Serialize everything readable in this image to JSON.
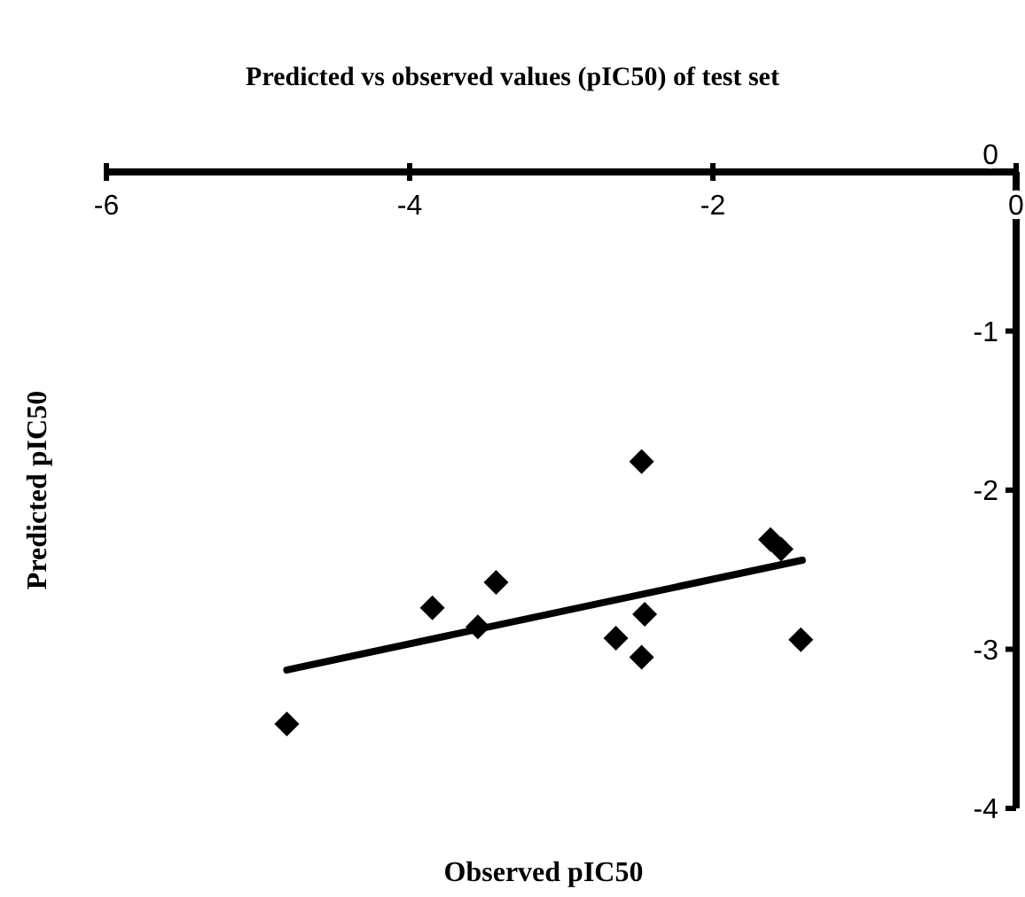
{
  "chart_data": {
    "type": "scatter",
    "title": "Predicted vs observed values (pIC50) of test set",
    "xlabel": "Observed pIC50",
    "ylabel": "Predicted pIC50",
    "xlim": [
      -6,
      0
    ],
    "ylim": [
      -4,
      0
    ],
    "xticks": [
      -6,
      -4,
      -2,
      0
    ],
    "yticks": [
      0,
      -1,
      -2,
      -3,
      -4
    ],
    "grid": false,
    "marker": "diamond",
    "series": [
      {
        "color": "#000000",
        "x": [
          -4.81,
          -3.85,
          -3.43,
          -3.55,
          -2.47,
          -2.64,
          -2.45,
          -2.47,
          -1.62,
          -1.55,
          -1.42
        ],
        "values": [
          -3.47,
          -2.74,
          -2.58,
          -2.86,
          -1.82,
          -2.93,
          -2.78,
          -3.05,
          -2.31,
          -2.37,
          -2.94
        ]
      },
      {
        "type": "line",
        "color": "#000000",
        "marker": "none",
        "x": [
          -4.81,
          -1.41
        ],
        "values": [
          -3.13,
          -2.44
        ]
      }
    ]
  }
}
